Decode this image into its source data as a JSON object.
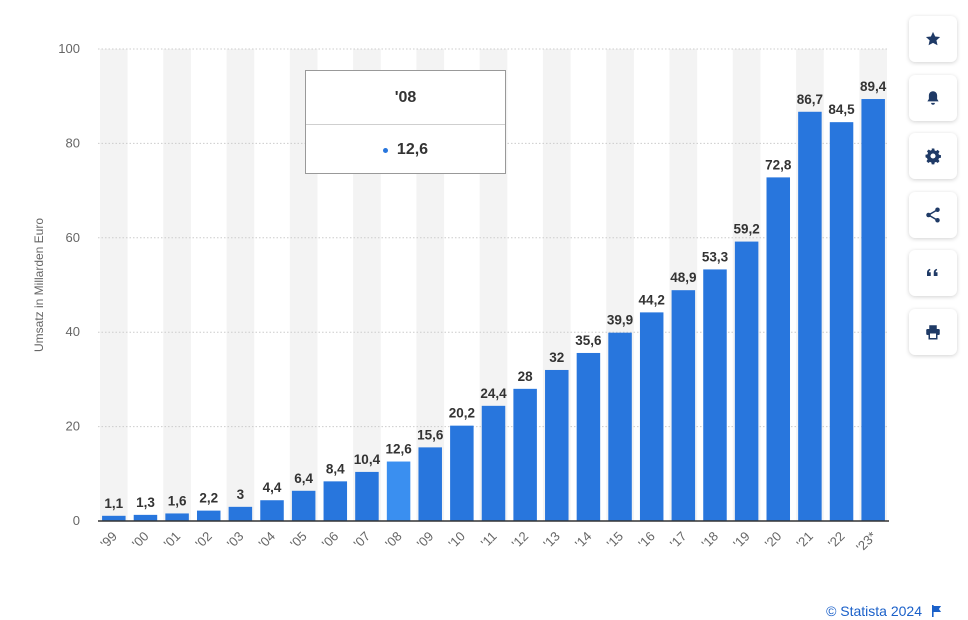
{
  "chart_data": {
    "type": "bar",
    "categories": [
      "'99",
      "'00",
      "'01",
      "'02",
      "'03",
      "'04",
      "'05",
      "'06",
      "'07",
      "'08",
      "'09",
      "'10",
      "'11",
      "'12",
      "'13",
      "'14",
      "'15",
      "'16",
      "'17",
      "'18",
      "'19",
      "'20",
      "'21",
      "'22",
      "'23*"
    ],
    "values": [
      1.1,
      1.3,
      1.6,
      2.2,
      3,
      4.4,
      6.4,
      8.4,
      10.4,
      12.6,
      15.6,
      20.2,
      24.4,
      28,
      32,
      35.6,
      39.9,
      44.2,
      48.9,
      53.3,
      59.2,
      72.8,
      86.7,
      84.5,
      89.4
    ],
    "value_labels": [
      "1,1",
      "1,3",
      "1,6",
      "2,2",
      "3",
      "4,4",
      "6,4",
      "8,4",
      "10,4",
      "12,6",
      "15,6",
      "20,2",
      "24,4",
      "28",
      "32",
      "35,6",
      "39,9",
      "44,2",
      "48,9",
      "53,3",
      "59,2",
      "72,8",
      "86,7",
      "84,5",
      "89,4"
    ],
    "ylabel": "Umsatz in Millarden Euro",
    "xlabel": "",
    "ylim": [
      0,
      100
    ],
    "yticks": [
      0,
      20,
      40,
      60,
      80,
      100
    ],
    "grid": true,
    "highlighted_index": 9,
    "colors": {
      "bar": "#2876dd",
      "bar_highlight": "#3a8ff0",
      "band": "#f3f3f3",
      "grid": "#cccccc"
    }
  },
  "tooltip": {
    "title": "'08",
    "value": "12,6"
  },
  "toolbar": {
    "buttons": [
      {
        "name": "favorite-button",
        "icon": "star-icon"
      },
      {
        "name": "notification-button",
        "icon": "bell-icon"
      },
      {
        "name": "settings-button",
        "icon": "gear-icon"
      },
      {
        "name": "share-button",
        "icon": "share-icon"
      },
      {
        "name": "cite-button",
        "icon": "quote-icon"
      },
      {
        "name": "print-button",
        "icon": "printer-icon"
      }
    ]
  },
  "credit": {
    "text": "© Statista 2024",
    "icon": "flag-icon"
  }
}
